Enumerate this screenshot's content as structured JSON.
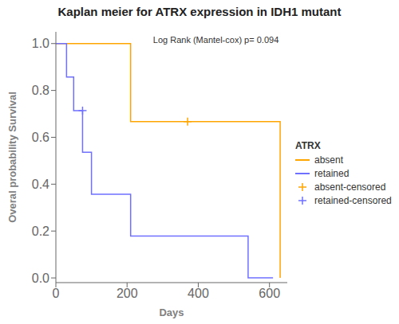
{
  "chart_data": {
    "type": "line",
    "title": "Kaplan meier for ATRX expression in IDH1 mutant",
    "x_label": "Days",
    "y_label": "Overal probability Survival",
    "annotations": [
      "Log Rank (Mantel-cox) p= 0.094"
    ],
    "legend_title": "ATRX",
    "legend": "right",
    "series": [
      {
        "name": "absent",
        "type": "line",
        "line_style": "step",
        "color": "#FFA500",
        "x": [
          0,
          210,
          210,
          630,
          630
        ],
        "values": [
          1.0,
          1.0,
          0.667,
          0.667,
          0.0
        ]
      },
      {
        "name": "retained",
        "type": "line",
        "line_style": "step",
        "color": "#7070FF",
        "x": [
          0,
          30,
          30,
          50,
          50,
          75,
          75,
          100,
          100,
          210,
          210,
          540,
          540,
          610
        ],
        "values": [
          1.0,
          1.0,
          0.857,
          0.857,
          0.714,
          0.714,
          0.536,
          0.536,
          0.357,
          0.357,
          0.179,
          0.179,
          0.0,
          0.0
        ]
      },
      {
        "name": "absent-censored",
        "type": "scatter",
        "marker": "plus",
        "color": "#FFA500",
        "x": [
          370
        ],
        "values": [
          0.667
        ]
      },
      {
        "name": "retained-censored",
        "type": "scatter",
        "marker": "plus",
        "color": "#7070FF",
        "x": [
          75
        ],
        "values": [
          0.714
        ]
      }
    ],
    "xlim": [
      0,
      650
    ],
    "ylim": [
      -0.02,
      1.05
    ],
    "xticks": [
      0,
      200,
      400,
      600
    ],
    "yticks": [
      {
        "value": 0,
        "label": "0.0"
      },
      0.2,
      0.4,
      0.6,
      0.8,
      {
        "value": 1,
        "label": "1.0"
      }
    ]
  }
}
